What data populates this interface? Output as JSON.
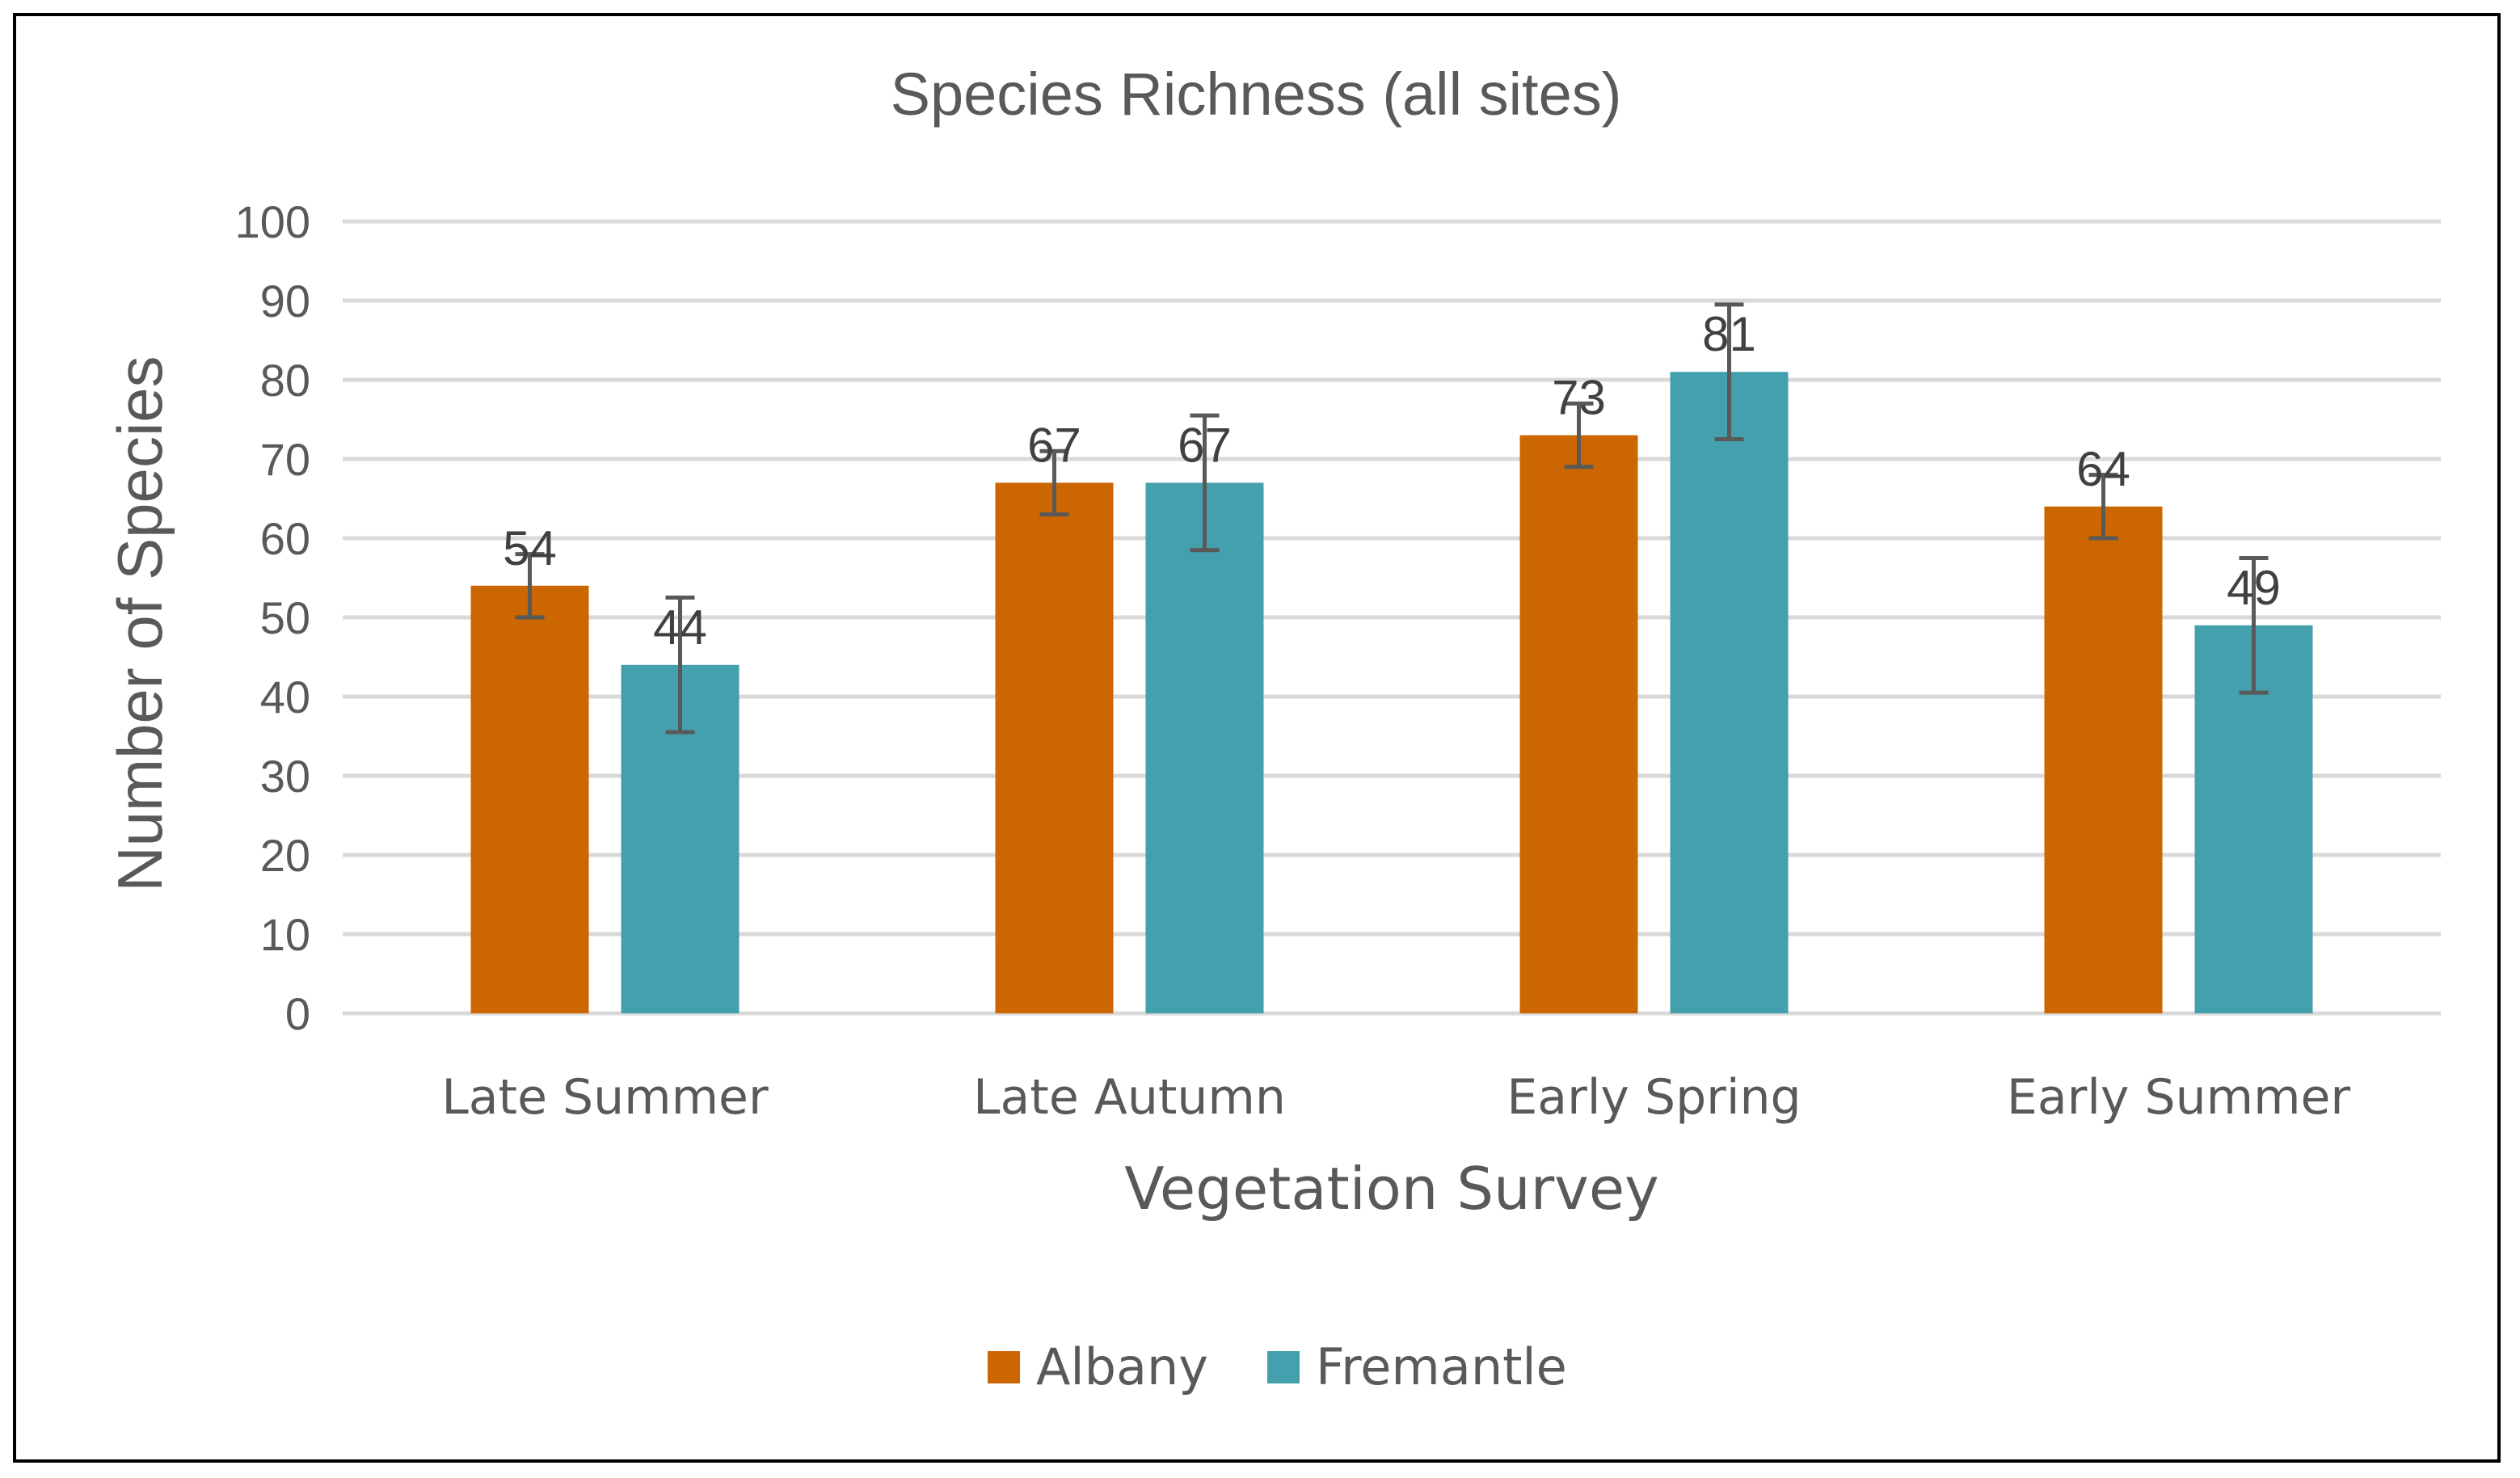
{
  "chart_data": {
    "type": "bar",
    "title": "Species Richness (all sites)",
    "xlabel": "Vegetation Survey",
    "ylabel": "Number of Species",
    "ylim": [
      0,
      100
    ],
    "yticks": [
      "0",
      "10",
      "20",
      "30",
      "40",
      "50",
      "60",
      "70",
      "80",
      "90",
      "100"
    ],
    "grid": true,
    "legend_position": "bottom",
    "categories": [
      "Late Summer",
      "Late Autumn",
      "Early Spring",
      "Early Summer"
    ],
    "series": [
      {
        "name": "Albany",
        "color": "#CC6600",
        "values": [
          54,
          67,
          73,
          64
        ],
        "labels": [
          "54",
          "67",
          "73",
          "64"
        ],
        "error": [
          4,
          4,
          4,
          4
        ]
      },
      {
        "name": "Fremantle",
        "color": "#43A0AC",
        "values": [
          44,
          67,
          81,
          49
        ],
        "labels": [
          "44",
          "67",
          "81",
          "49"
        ],
        "error": [
          8.5,
          8.5,
          8.5,
          8.5
        ]
      }
    ]
  },
  "colors": {
    "grid": "#D9D9D9",
    "text": "#595959",
    "error_bar": "#595959"
  }
}
